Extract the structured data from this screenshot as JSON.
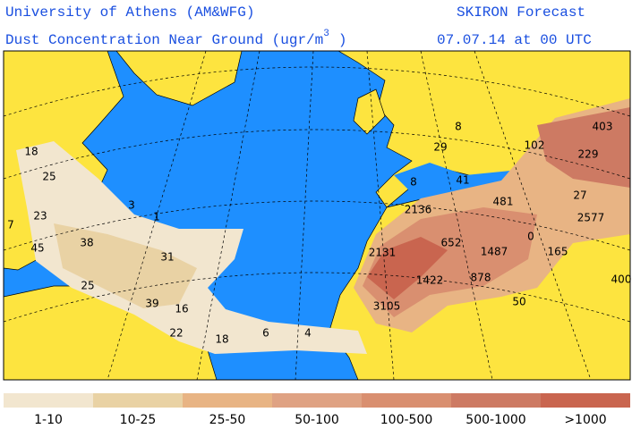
{
  "header": {
    "institution": "University of Athens (AM&WFG)",
    "product": "SKIRON Forecast",
    "field": "Dust Concentration Near Ground (ugr/m",
    "field_superscript": "3",
    "field_close": ")",
    "valid_time": "07.07.14 at 00 UTC"
  },
  "map_labels": [
    18,
    25,
    3,
    1,
    23,
    7,
    45,
    38,
    31,
    25,
    39,
    16,
    22,
    18,
    6,
    4,
    2131,
    2136,
    652,
    1487,
    0,
    165,
    1422,
    878,
    3105,
    50,
    400,
    481,
    2577,
    27,
    229,
    403,
    102,
    8,
    29,
    41,
    8
  ],
  "legend": {
    "items": [
      {
        "label": "1-10",
        "color": "#f2e6cf"
      },
      {
        "label": "10-25",
        "color": "#e9d2a4"
      },
      {
        "label": "25-50",
        "color": "#e8b484"
      },
      {
        "label": "50-100",
        "color": "#dfa283"
      },
      {
        "label": "100-500",
        "color": "#d98f70"
      },
      {
        "label": "500-1000",
        "color": "#cd7a63"
      },
      {
        "label": ">1000",
        "color": "#c9654f"
      }
    ]
  }
}
